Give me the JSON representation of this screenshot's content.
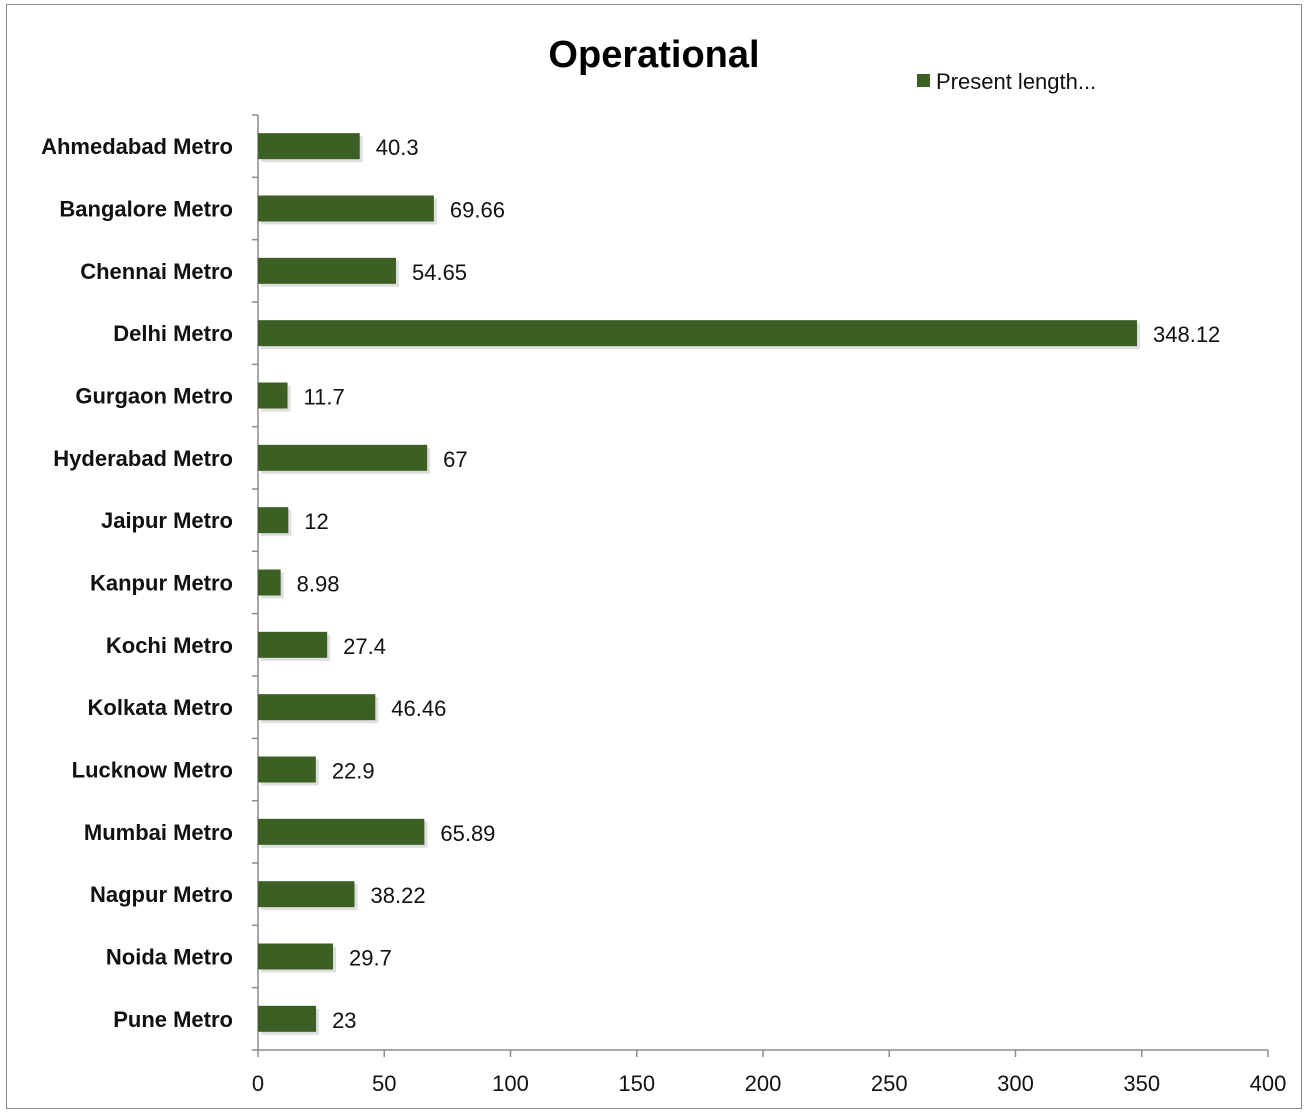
{
  "chart_data": {
    "type": "bar",
    "orientation": "horizontal",
    "title": "Operational",
    "xlabel": "",
    "ylabel": "",
    "xlim": [
      0,
      400
    ],
    "x_ticks": [
      0,
      50,
      100,
      150,
      200,
      250,
      300,
      350,
      400
    ],
    "grid": false,
    "legend_position": "top-right",
    "bar_color": "#3c5f24",
    "categories": [
      "Ahmedabad Metro",
      "Bangalore Metro",
      "Chennai Metro",
      "Delhi Metro",
      "Gurgaon Metro",
      "Hyderabad Metro",
      "Jaipur Metro",
      "Kanpur Metro",
      "Kochi Metro",
      "Kolkata Metro",
      "Lucknow Metro",
      "Mumbai Metro",
      "Nagpur Metro",
      "Noida Metro",
      "Pune Metro"
    ],
    "series": [
      {
        "name": "Present length...",
        "values": [
          40.3,
          69.66,
          54.65,
          348.12,
          11.7,
          67,
          12,
          8.98,
          27.4,
          46.46,
          22.9,
          65.89,
          38.22,
          29.7,
          23
        ],
        "labels": [
          "40.3",
          "69.66",
          "54.65",
          "348.12",
          "11.7",
          "67",
          "12",
          "8.98",
          "27.4",
          "46.46",
          "22.9",
          "65.89",
          "38.22",
          "29.7",
          "23"
        ]
      }
    ]
  }
}
